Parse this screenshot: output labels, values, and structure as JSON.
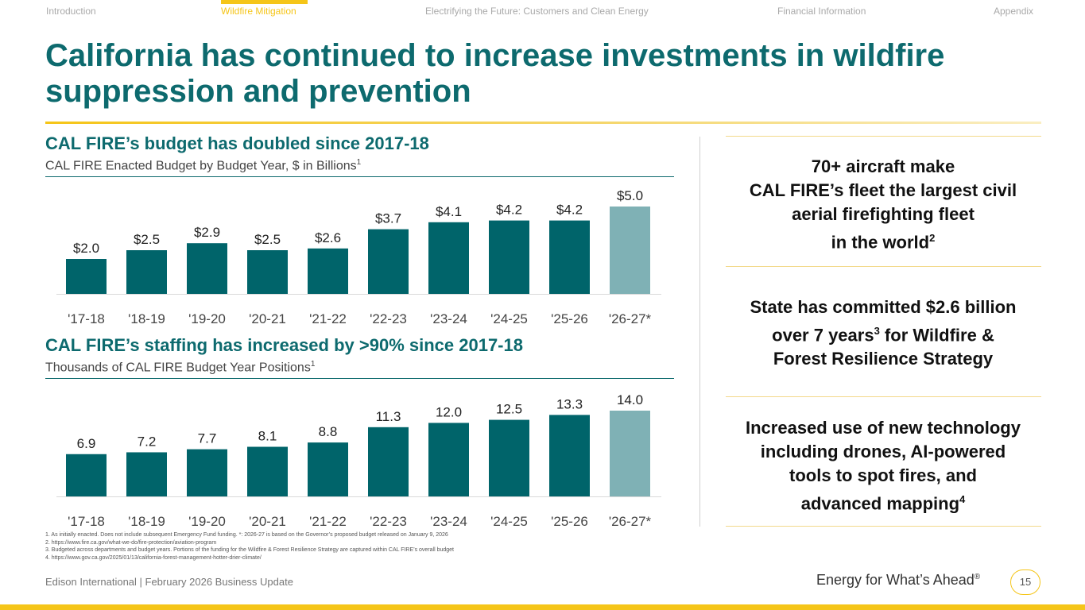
{
  "nav": {
    "tabs": [
      {
        "label": "Introduction",
        "active": false
      },
      {
        "label": "Wildfire Mitigation",
        "active": true
      },
      {
        "label": "Electrifying the Future: Customers and Clean Energy",
        "active": false
      },
      {
        "label": "Financial Information",
        "active": false
      },
      {
        "label": "Appendix",
        "active": false
      }
    ]
  },
  "page": {
    "title": "California has continued to increase investments in wildfire suppression and prevention"
  },
  "budget_section": {
    "title": "CAL FIRE’s budget has doubled since 2017-18",
    "subtitle": "CAL FIRE Enacted Budget by Budget Year, $ in Billions",
    "subtitle_sup": "1"
  },
  "staffing_section": {
    "title": "CAL FIRE’s staffing has increased by >90% since 2017-18",
    "subtitle": "Thousands of CAL FIRE Budget Year Positions",
    "subtitle_sup": "1"
  },
  "chart_data": [
    {
      "type": "bar",
      "categories": [
        "'17-18",
        "'18-19",
        "'19-20",
        "'20-21",
        "'21-22",
        "'22-23",
        "'23-24",
        "'24-25",
        "'25-26",
        "'26-27*"
      ],
      "values": [
        2.0,
        2.5,
        2.9,
        2.5,
        2.6,
        3.7,
        4.1,
        4.2,
        4.2,
        5.0
      ],
      "data_labels": [
        "$2.0",
        "$2.5",
        "$2.9",
        "$2.5",
        "$2.6",
        "$3.7",
        "$4.1",
        "$4.2",
        "$4.2",
        "$5.0"
      ],
      "title": "CAL FIRE Enacted Budget by Budget Year, $ in Billions",
      "ylim": [
        0,
        5.0
      ],
      "grid": false,
      "colors": {
        "enacted": "#00646a",
        "proposed": "#7fb1b5"
      },
      "highlight_last": true
    },
    {
      "type": "bar",
      "categories": [
        "'17-18",
        "'18-19",
        "'19-20",
        "'20-21",
        "'21-22",
        "'22-23",
        "'23-24",
        "'24-25",
        "'25-26",
        "'26-27*"
      ],
      "values": [
        6.9,
        7.2,
        7.7,
        8.1,
        8.8,
        11.3,
        12.0,
        12.5,
        13.3,
        14.0
      ],
      "data_labels": [
        "6.9",
        "7.2",
        "7.7",
        "8.1",
        "8.8",
        "11.3",
        "12.0",
        "12.5",
        "13.3",
        "14.0"
      ],
      "title": "Thousands of CAL FIRE Budget Year Positions",
      "ylim": [
        0,
        14.0
      ],
      "grid": false,
      "colors": {
        "enacted": "#00646a",
        "proposed": "#7fb1b5"
      },
      "highlight_last": true
    }
  ],
  "facts": [
    {
      "lines": [
        "70+ aircraft make",
        "CAL FIRE’s fleet the largest civil",
        "aerial firefighting fleet",
        "in the world"
      ],
      "sup": "2"
    },
    {
      "line1_pre": "State has committed $2.6 billion",
      "line2_pre": "over 7 years",
      "line2_sup": "3",
      "line2_post": " for Wildfire &",
      "line3": "Forest Resilience Strategy"
    },
    {
      "lines": [
        "Increased use of new technology",
        "including drones, AI-powered",
        "tools to spot fires, and",
        "advanced mapping"
      ],
      "sup": "4"
    }
  ],
  "footnotes": [
    "1.   As initially enacted. Does not include subsequent Emergency Fund funding. *: 2026-27 is based on the Governor’s proposed budget released on January 9, 2026",
    "2.   https://www.fire.ca.gov/what-we-do/fire-protection/aviation-program",
    "3.   Budgeted across departments and budget years. Portions of the funding for the Wildfire & Forest Resilience Strategy are captured within CAL FIRE’s overall budget",
    "4.   https://www.gov.ca.gov/2025/01/13/california-forest-management-hotter-drier-climate/"
  ],
  "footer": {
    "left": "Edison International |  February 2026 Business Update",
    "tagline": "Energy for What’s Ahead",
    "tagline_mark": "®",
    "page_number": "15"
  }
}
